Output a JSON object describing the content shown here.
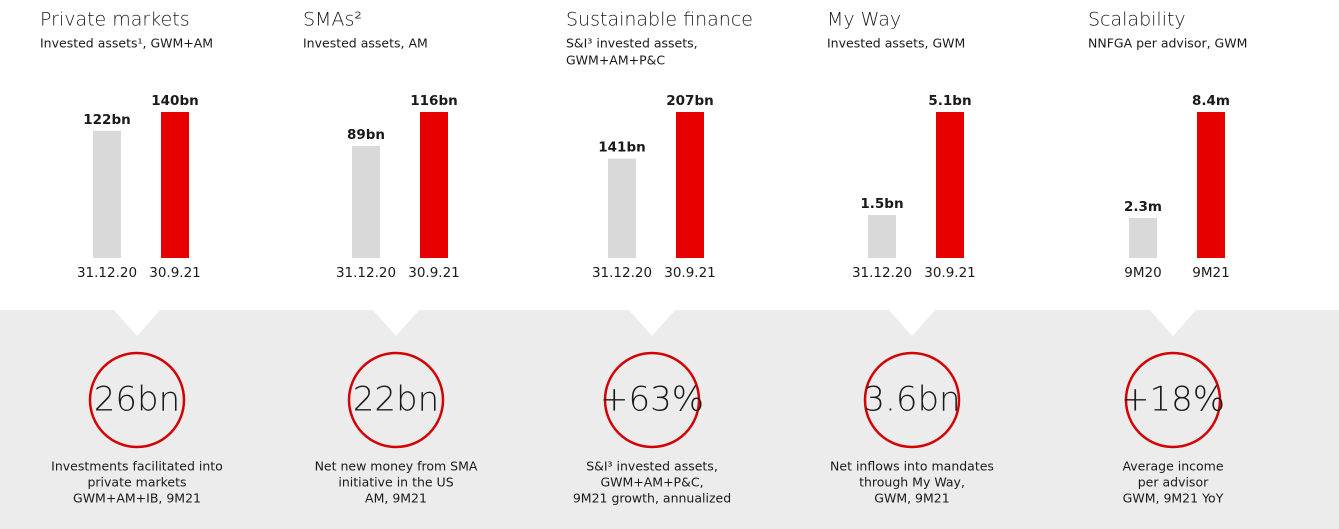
{
  "chart_data": [
    {
      "type": "bar",
      "title": "Private markets",
      "subtitle": [
        "Invested assets¹, GWM+AM"
      ],
      "categories": [
        "31.12.20",
        "30.9.21"
      ],
      "values": [
        122,
        140
      ],
      "value_labels": [
        "122bn",
        "140bn"
      ],
      "colors": [
        "#d9d9d9",
        "#e60000"
      ],
      "ylim": [
        0,
        140
      ]
    },
    {
      "type": "bar",
      "title": "SMAs²",
      "subtitle": [
        "Invested assets, AM"
      ],
      "categories": [
        "31.12.20",
        "30.9.21"
      ],
      "values": [
        89,
        116
      ],
      "value_labels": [
        "89bn",
        "116bn"
      ],
      "colors": [
        "#d9d9d9",
        "#e60000"
      ],
      "ylim": [
        0,
        116
      ]
    },
    {
      "type": "bar",
      "title": "Sustainable finance",
      "subtitle": [
        "S&I³ invested assets,",
        "GWM+AM+P&C"
      ],
      "categories": [
        "31.12.20",
        "30.9.21"
      ],
      "values": [
        141,
        207
      ],
      "value_labels": [
        "141bn",
        "207bn"
      ],
      "colors": [
        "#d9d9d9",
        "#e60000"
      ],
      "ylim": [
        0,
        207
      ]
    },
    {
      "type": "bar",
      "title": "My Way",
      "subtitle": [
        "Invested assets, GWM"
      ],
      "categories": [
        "31.12.20",
        "30.9.21"
      ],
      "values": [
        1.5,
        5.1
      ],
      "value_labels": [
        "1.5bn",
        "5.1bn"
      ],
      "colors": [
        "#d9d9d9",
        "#e60000"
      ],
      "ylim": [
        0,
        5.1
      ]
    },
    {
      "type": "bar",
      "title": "Scalability",
      "subtitle": [
        "NNFGA per advisor, GWM"
      ],
      "categories": [
        "9M20",
        "9M21"
      ],
      "values": [
        2.3,
        8.4
      ],
      "value_labels": [
        "2.3m",
        "8.4m"
      ],
      "colors": [
        "#d9d9d9",
        "#e60000"
      ],
      "ylim": [
        0,
        8.4
      ]
    }
  ],
  "highlights": [
    {
      "value": "26bn",
      "lines": [
        "Investments facilitated into",
        "private markets",
        "GWM+AM+IB, 9M21"
      ]
    },
    {
      "value": "22bn",
      "lines": [
        "Net new money from SMA",
        "initiative in the US",
        "AM, 9M21"
      ]
    },
    {
      "value": "+63%",
      "lines": [
        "S&I³ invested assets,",
        "GWM+AM+P&C,",
        "9M21 growth, annualized"
      ]
    },
    {
      "value": "3.6bn",
      "lines": [
        "Net inflows into mandates",
        "through My Way,",
        "GWM, 9M21"
      ]
    },
    {
      "value": "+18%",
      "lines": [
        "Average income",
        "per advisor",
        "GWM, 9M21 YoY"
      ]
    }
  ]
}
